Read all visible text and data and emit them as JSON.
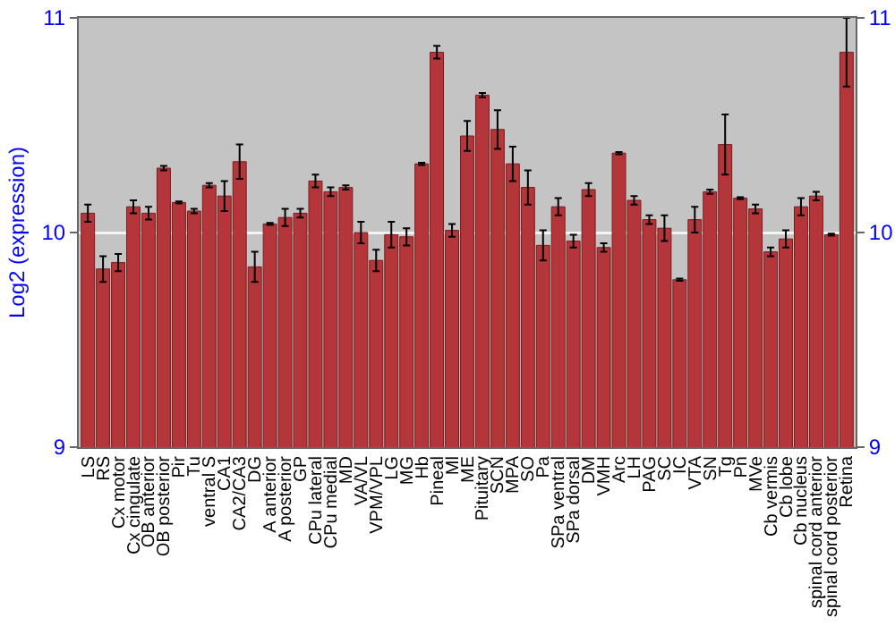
{
  "chart_data": {
    "type": "bar",
    "ylabel": "Log2 (expression)",
    "categories": [
      "LS",
      "RS",
      "Cx motor",
      "Cx cingulate",
      "OB anterior",
      "OB posterior",
      "Pir",
      "Tu",
      "ventral S",
      "CA1",
      "CA2/CA3",
      "DG",
      "A anterior",
      "A posterior",
      "GP",
      "CPu lateral",
      "CPu medial",
      "MD",
      "VA/VL",
      "VPM/VPL",
      "LG",
      "MG",
      "Hb",
      "Pineal",
      "Ml",
      "ME",
      "Pituitary",
      "SCN",
      "MPA",
      "SO",
      "Pa",
      "SPa ventral",
      "SPa dorsal",
      "DM",
      "VMH",
      "Arc",
      "LH",
      "PAG",
      "SC",
      "IC",
      "VTA",
      "SN",
      "Tg",
      "Pn",
      "MVe",
      "Cb vermis",
      "Cb lobe",
      "Cb nucleus",
      "spinal cord anterior",
      "spinal cord posterior",
      "Retina"
    ],
    "values": [
      10.09,
      9.83,
      9.86,
      10.12,
      10.09,
      10.3,
      10.14,
      10.1,
      10.22,
      10.17,
      10.33,
      9.84,
      10.04,
      10.07,
      10.09,
      10.24,
      10.19,
      10.21,
      10.0,
      9.87,
      9.99,
      9.98,
      10.32,
      10.84,
      10.01,
      10.45,
      10.64,
      10.48,
      10.32,
      10.21,
      9.94,
      10.12,
      9.96,
      10.2,
      9.93,
      10.37,
      10.15,
      10.06,
      10.02,
      9.78,
      10.06,
      10.19,
      10.41,
      10.16,
      10.11,
      9.91,
      9.97,
      10.12,
      10.17,
      9.99,
      10.84
    ],
    "errors": [
      0.04,
      0.06,
      0.04,
      0.03,
      0.03,
      0.01,
      0.005,
      0.01,
      0.01,
      0.07,
      0.08,
      0.07,
      0.005,
      0.04,
      0.02,
      0.03,
      0.02,
      0.01,
      0.05,
      0.05,
      0.06,
      0.04,
      0.005,
      0.03,
      0.03,
      0.07,
      0.01,
      0.09,
      0.08,
      0.08,
      0.07,
      0.04,
      0.03,
      0.03,
      0.02,
      0.005,
      0.02,
      0.02,
      0.06,
      0.005,
      0.06,
      0.01,
      0.14,
      0.005,
      0.02,
      0.02,
      0.04,
      0.04,
      0.02,
      0.005,
      0.16
    ],
    "color": "#b5363a",
    "ylim": [
      9,
      11
    ],
    "yticks": [
      9,
      10,
      11
    ],
    "y2lim": [
      9,
      11
    ],
    "y2ticks": [
      9,
      10,
      11
    ],
    "grid": "y"
  }
}
